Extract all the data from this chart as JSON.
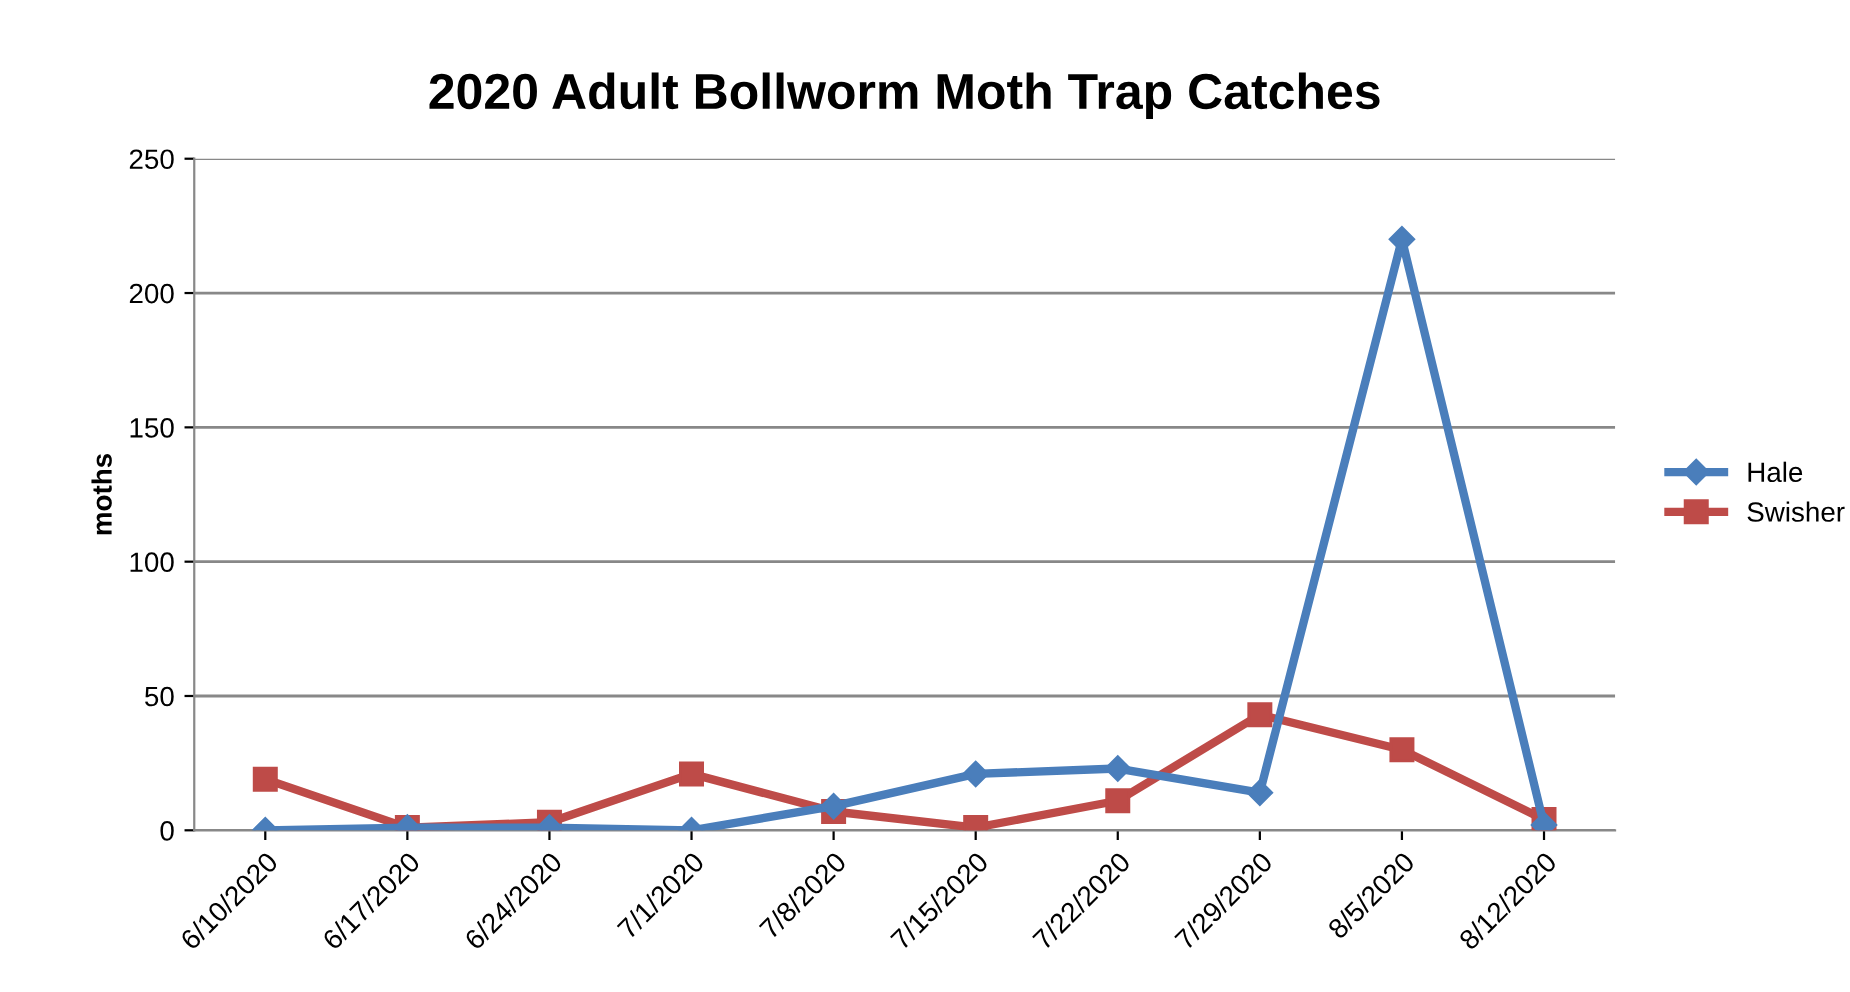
{
  "chart_data": {
    "type": "line",
    "title": "2020 Adult Bollworm Moth Trap Catches",
    "ylabel": "moths",
    "categories": [
      "6/10/2020",
      "6/17/2020",
      "6/24/2020",
      "7/1/2020",
      "7/8/2020",
      "7/15/2020",
      "7/22/2020",
      "7/29/2020",
      "8/5/2020",
      "8/12/2020"
    ],
    "series": [
      {
        "name": "Hale",
        "color": "#4a7ebb",
        "marker": "diamond",
        "values": [
          0,
          1,
          1,
          0,
          9,
          21,
          23,
          14,
          220,
          2
        ]
      },
      {
        "name": "Swisher",
        "color": "#be4b48",
        "marker": "square",
        "values": [
          19,
          1,
          3,
          21,
          7,
          1,
          11,
          43,
          30,
          4
        ]
      }
    ],
    "ylim": [
      0,
      250
    ],
    "yticks": [
      0,
      50,
      100,
      150,
      200,
      250
    ],
    "grid": "y",
    "legend": "right",
    "line_style": "solid"
  }
}
